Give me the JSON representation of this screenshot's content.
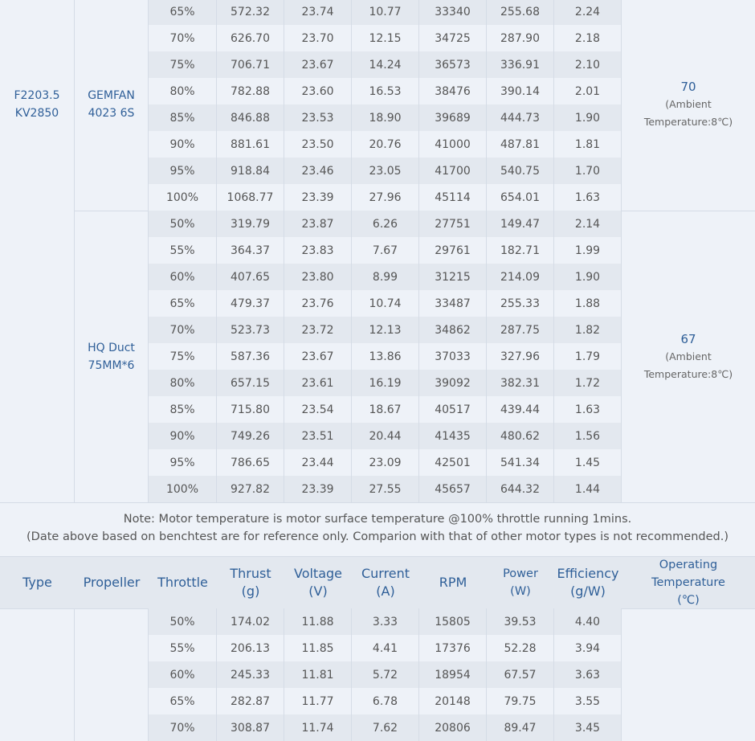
{
  "groups": [
    {
      "type": "F2203.5\nKV2850",
      "propeller": "GEMFAN\n4023 6S",
      "temp": "70",
      "temp_note": "(Ambient\nTemperature:8℃)",
      "rows": [
        [
          "65%",
          "572.32",
          "23.74",
          "10.77",
          "33340",
          "255.68",
          "2.24"
        ],
        [
          "70%",
          "626.70",
          "23.70",
          "12.15",
          "34725",
          "287.90",
          "2.18"
        ],
        [
          "75%",
          "706.71",
          "23.67",
          "14.24",
          "36573",
          "336.91",
          "2.10"
        ],
        [
          "80%",
          "782.88",
          "23.60",
          "16.53",
          "38476",
          "390.14",
          "2.01"
        ],
        [
          "85%",
          "846.88",
          "23.53",
          "18.90",
          "39689",
          "444.73",
          "1.90"
        ],
        [
          "90%",
          "881.61",
          "23.50",
          "20.76",
          "41000",
          "487.81",
          "1.81"
        ],
        [
          "95%",
          "918.84",
          "23.46",
          "23.05",
          "41700",
          "540.75",
          "1.70"
        ],
        [
          "100%",
          "1068.77",
          "23.39",
          "27.96",
          "45114",
          "654.01",
          "1.63"
        ]
      ]
    },
    {
      "type": "",
      "propeller": "HQ Duct\n75MM*6",
      "temp": "67",
      "temp_note": "(Ambient\nTemperature:8℃)",
      "rows": [
        [
          "50%",
          "319.79",
          "23.87",
          "6.26",
          "27751",
          "149.47",
          "2.14"
        ],
        [
          "55%",
          "364.37",
          "23.83",
          "7.67",
          "29761",
          "182.71",
          "1.99"
        ],
        [
          "60%",
          "407.65",
          "23.80",
          "8.99",
          "31215",
          "214.09",
          "1.90"
        ],
        [
          "65%",
          "479.37",
          "23.76",
          "10.74",
          "33487",
          "255.33",
          "1.88"
        ],
        [
          "70%",
          "523.73",
          "23.72",
          "12.13",
          "34862",
          "287.75",
          "1.82"
        ],
        [
          "75%",
          "587.36",
          "23.67",
          "13.86",
          "37033",
          "327.96",
          "1.79"
        ],
        [
          "80%",
          "657.15",
          "23.61",
          "16.19",
          "39092",
          "382.31",
          "1.72"
        ],
        [
          "85%",
          "715.80",
          "23.54",
          "18.67",
          "40517",
          "439.44",
          "1.63"
        ],
        [
          "90%",
          "749.26",
          "23.51",
          "20.44",
          "41435",
          "480.62",
          "1.56"
        ],
        [
          "95%",
          "786.65",
          "23.44",
          "23.09",
          "42501",
          "541.34",
          "1.45"
        ],
        [
          "100%",
          "927.82",
          "23.39",
          "27.55",
          "45657",
          "644.32",
          "1.44"
        ]
      ]
    }
  ],
  "note": {
    "line1": "Note: Motor temperature is motor surface temperature @100% throttle running 1mins.",
    "line2": "(Date above based on benchtest are for reference only. Comparion with that of other motor types is not recommended.)"
  },
  "headers": [
    "Type",
    "Propeller",
    "Throttle",
    "Thrust\n(g)",
    "Voltage\n(V)",
    "Current\n(A)",
    "RPM",
    "Power\n(W)",
    "Efficiency\n(g/W)",
    "Operating\nTemperature\n(℃)"
  ],
  "next_rows": [
    [
      "50%",
      "174.02",
      "11.88",
      "3.33",
      "15805",
      "39.53",
      "4.40"
    ],
    [
      "55%",
      "206.13",
      "11.85",
      "4.41",
      "17376",
      "52.28",
      "3.94"
    ],
    [
      "60%",
      "245.33",
      "11.81",
      "5.72",
      "18954",
      "67.57",
      "3.63"
    ],
    [
      "65%",
      "282.87",
      "11.77",
      "6.78",
      "20148",
      "79.75",
      "3.55"
    ],
    [
      "70%",
      "308.87",
      "11.74",
      "7.62",
      "20806",
      "89.47",
      "3.45"
    ]
  ]
}
